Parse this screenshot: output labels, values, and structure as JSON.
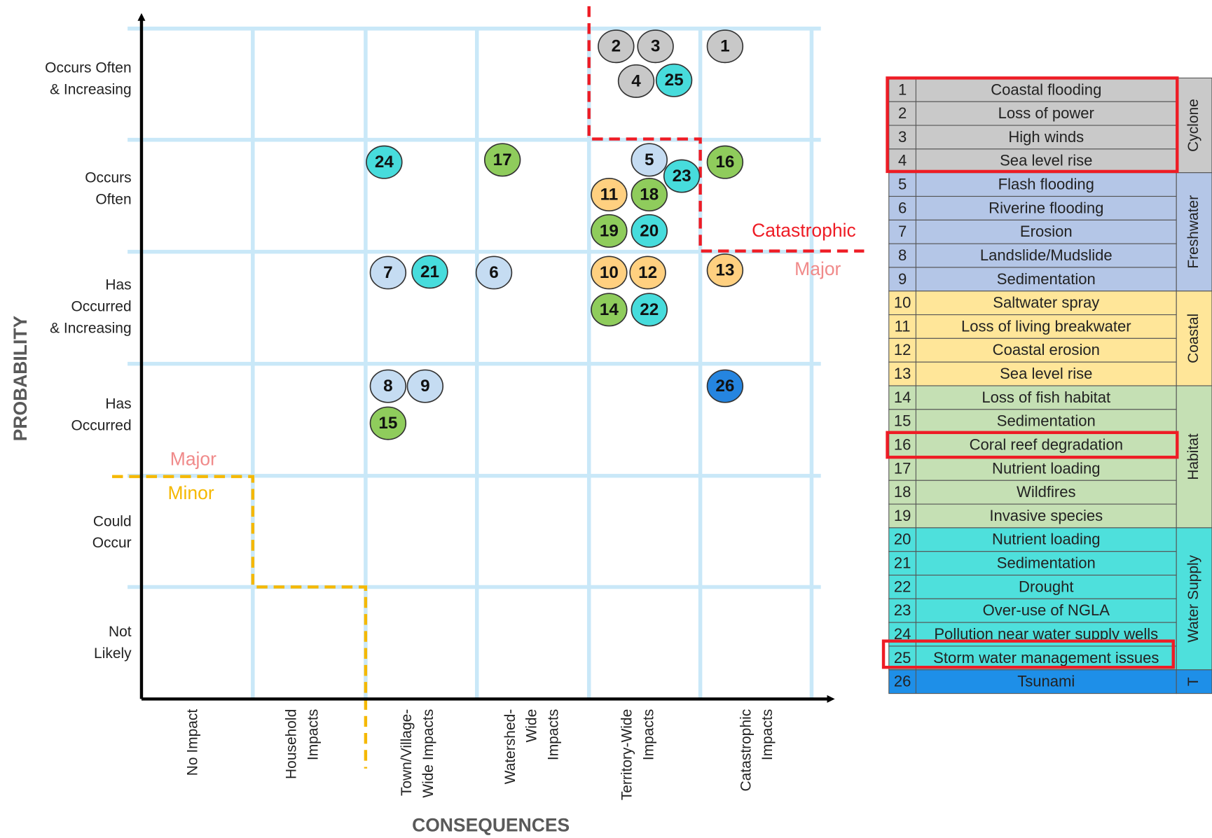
{
  "axes": {
    "y_title": "PROBABILITY",
    "x_title": "CONSEQUENCES",
    "rows": [
      [
        "Occurs Often",
        "& Increasing"
      ],
      [
        "Occurs",
        "Often"
      ],
      [
        "Has",
        "Occurred",
        "& Increasing"
      ],
      [
        "Has",
        "Occurred"
      ],
      [
        "Could",
        "Occur"
      ],
      [
        "Not",
        "Likely"
      ]
    ],
    "columns": [
      [
        "No Impact"
      ],
      [
        "Household",
        "Impacts"
      ],
      [
        "Town/Village-",
        "Wide Impacts"
      ],
      [
        "Watershed-",
        "Wide",
        "Impacts"
      ],
      [
        "Territory-Wide",
        "Impacts"
      ],
      [
        "Catastrophic",
        "Impacts"
      ]
    ]
  },
  "zones": {
    "upper": {
      "above": "Catastrophic",
      "below": "Major"
    },
    "lower": {
      "above": "Major",
      "below": "Minor"
    }
  },
  "markers": [
    1,
    2,
    3,
    4,
    25,
    24,
    17,
    5,
    23,
    16,
    11,
    18,
    19,
    20,
    7,
    21,
    6,
    10,
    12,
    13,
    14,
    22,
    8,
    9,
    15,
    26
  ],
  "groups": [
    {
      "name": "Cyclone",
      "color": "#c9c9c9",
      "marker_color": "#c8c8c8",
      "items": [
        {
          "number": 1,
          "name": "Coastal flooding"
        },
        {
          "number": 2,
          "name": "Loss of power"
        },
        {
          "number": 3,
          "name": "High winds"
        },
        {
          "number": 4,
          "name": "Sea level rise"
        }
      ]
    },
    {
      "name": "Freshwater",
      "color": "#b4c6e7",
      "marker_color": "#c5dcf2",
      "items": [
        {
          "number": 5,
          "name": "Flash flooding"
        },
        {
          "number": 6,
          "name": "Riverine flooding"
        },
        {
          "number": 7,
          "name": "Erosion"
        },
        {
          "number": 8,
          "name": "Landslide/Mudslide"
        },
        {
          "number": 9,
          "name": "Sedimentation"
        }
      ]
    },
    {
      "name": "Coastal",
      "color": "#ffe699",
      "marker_color": "#ffd080",
      "items": [
        {
          "number": 10,
          "name": "Saltwater spray"
        },
        {
          "number": 11,
          "name": "Loss of living breakwater"
        },
        {
          "number": 12,
          "name": "Coastal erosion"
        },
        {
          "number": 13,
          "name": "Sea level rise"
        }
      ]
    },
    {
      "name": "Habitat",
      "color": "#c5e0b4",
      "marker_color": "#8fcc5c",
      "items": [
        {
          "number": 14,
          "name": "Loss of fish habitat"
        },
        {
          "number": 15,
          "name": "Sedimentation"
        },
        {
          "number": 16,
          "name": "Coral reef degradation"
        },
        {
          "number": 17,
          "name": "Nutrient loading"
        },
        {
          "number": 18,
          "name": "Wildfires"
        },
        {
          "number": 19,
          "name": "Invasive species"
        }
      ]
    },
    {
      "name": "Water Supply",
      "color": "#4ee0dc",
      "marker_color": "#47dcdc",
      "items": [
        {
          "number": 20,
          "name": "Nutrient loading"
        },
        {
          "number": 21,
          "name": "Sedimentation"
        },
        {
          "number": 22,
          "name": "Drought"
        },
        {
          "number": 23,
          "name": "Over-use of NGLA"
        },
        {
          "number": 24,
          "name": "Pollution near water supply wells"
        },
        {
          "number": 25,
          "name": "Storm water management issues"
        }
      ]
    },
    {
      "name": "T",
      "color": "#1e8fe8",
      "marker_color": "#2585e0",
      "items": [
        {
          "number": 26,
          "name": "Tsunami"
        }
      ]
    }
  ]
}
